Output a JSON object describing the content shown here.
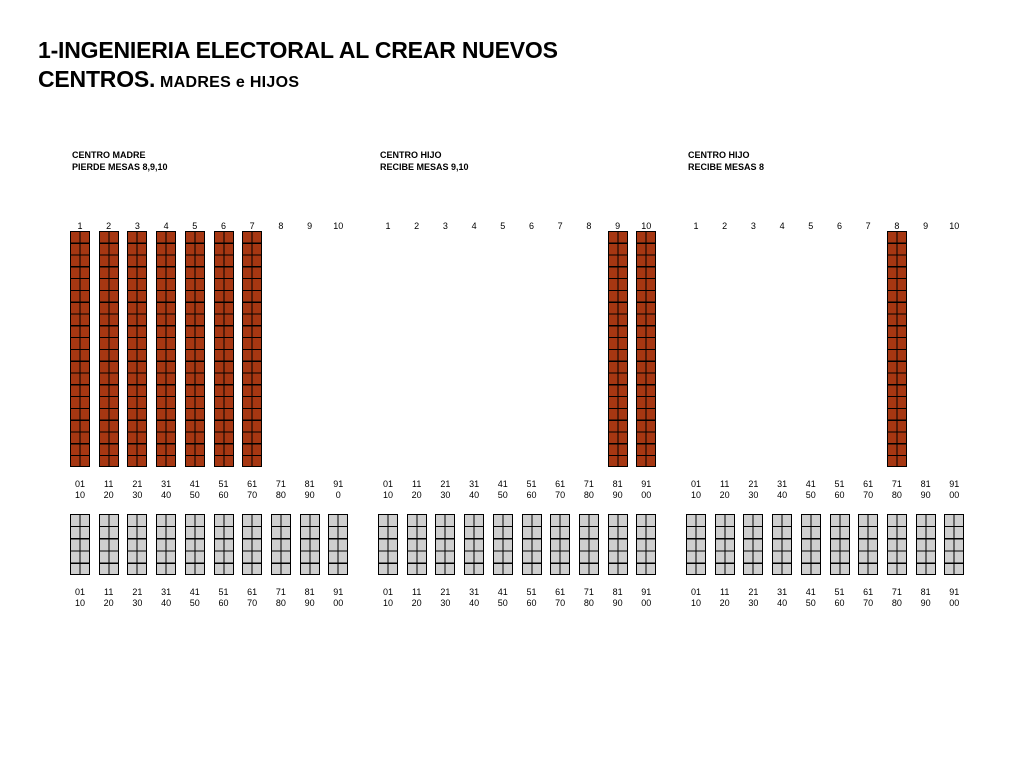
{
  "title": {
    "line1": "1-INGENIERIA ELECTORAL AL CREAR NUEVOS",
    "line2_main": "CENTROS.",
    "line2_sub": " MADRES e HIJOS"
  },
  "colors": {
    "active_mesa": "#a63712",
    "elector_block": "#cfcfcf"
  },
  "panels": [
    {
      "label1": "CENTRO MADRE",
      "label2": "PIERDE MESAS 8,9,10",
      "mesa_numbers": [
        "1",
        "2",
        "3",
        "4",
        "5",
        "6",
        "7",
        "8",
        "9",
        "10"
      ],
      "active_mesas": [
        1,
        2,
        3,
        4,
        5,
        6,
        7
      ],
      "range_top": [
        "01",
        "11",
        "21",
        "31",
        "41",
        "51",
        "61",
        "71",
        "81",
        "91"
      ],
      "range_bottom": [
        "10",
        "20",
        "30",
        "40",
        "50",
        "60",
        "70",
        "80",
        "90",
        "0"
      ],
      "lower_top": [
        "01",
        "11",
        "21",
        "31",
        "41",
        "51",
        "61",
        "71",
        "81",
        "91"
      ],
      "lower_bottom": [
        "10",
        "20",
        "30",
        "40",
        "50",
        "60",
        "70",
        "80",
        "90",
        "00"
      ]
    },
    {
      "label1": "CENTRO HIJO",
      "label2": "RECIBE MESAS 9,10",
      "mesa_numbers": [
        "1",
        "2",
        "3",
        "4",
        "5",
        "6",
        "7",
        "8",
        "9",
        "10"
      ],
      "active_mesas": [
        9,
        10
      ],
      "range_top": [
        "01",
        "11",
        "21",
        "31",
        "41",
        "51",
        "61",
        "71",
        "81",
        "91"
      ],
      "range_bottom": [
        "10",
        "20",
        "30",
        "40",
        "50",
        "60",
        "70",
        "80",
        "90",
        "00"
      ],
      "lower_top": [
        "01",
        "11",
        "21",
        "31",
        "41",
        "51",
        "61",
        "71",
        "81",
        "91"
      ],
      "lower_bottom": [
        "10",
        "20",
        "30",
        "40",
        "50",
        "60",
        "70",
        "80",
        "90",
        "00"
      ]
    },
    {
      "label1": "CENTRO HIJO",
      "label2": "RECIBE MESAS 8",
      "mesa_numbers": [
        "1",
        "2",
        "3",
        "4",
        "5",
        "6",
        "7",
        "8",
        "9",
        "10"
      ],
      "active_mesas": [
        8
      ],
      "range_top": [
        "01",
        "11",
        "21",
        "31",
        "41",
        "51",
        "61",
        "71",
        "81",
        "91"
      ],
      "range_bottom": [
        "10",
        "20",
        "30",
        "40",
        "50",
        "60",
        "70",
        "80",
        "90",
        "00"
      ],
      "lower_top": [
        "01",
        "11",
        "21",
        "31",
        "41",
        "51",
        "61",
        "71",
        "81",
        "91"
      ],
      "lower_bottom": [
        "10",
        "20",
        "30",
        "40",
        "50",
        "60",
        "70",
        "80",
        "90",
        "00"
      ]
    }
  ]
}
